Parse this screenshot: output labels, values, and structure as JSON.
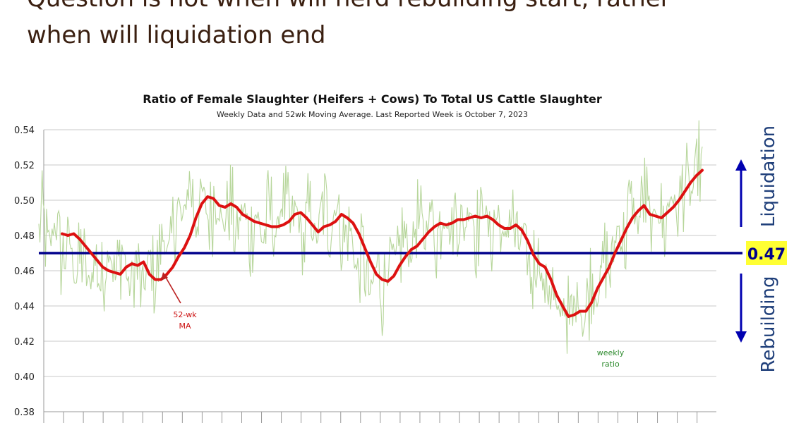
{
  "headline": {
    "line1": "Question is not when will herd rebuilding start, rather",
    "line2": "when will liquidation end"
  },
  "chart_data": {
    "type": "line",
    "title": "Ratio of Female Slaughter (Heifers + Cows) To Total US Cattle Slaughter",
    "subtitle": "Weekly Data and 52wk Moving Average.  Last Reported Week is October 7, 2023",
    "ylim": [
      0.38,
      0.54
    ],
    "yticks": [
      "0.54",
      "0.52",
      "0.50",
      "0.48",
      "0.46",
      "0.44",
      "0.42",
      "0.40",
      "0.38"
    ],
    "grid": true,
    "threshold": {
      "value": 0.47,
      "label": "0.47",
      "color": "#00008b",
      "label_bg": "#ffff33"
    },
    "side_labels": {
      "up": "Liquidation",
      "down": "Rebuilding",
      "color": "#1f3f7a",
      "arrow_color": "#0000b0"
    },
    "annotations": {
      "ma_line1": "52-wk",
      "ma_line2": "MA",
      "weekly_line1": "weekly",
      "weekly_line2": "ratio"
    },
    "colors": {
      "ma": "#dd1111",
      "weekly": "#b7d69b",
      "grid": "#c8c8c8",
      "ma_label": "#cc1111",
      "weekly_label": "#2d8a2d"
    },
    "series": [
      {
        "type": "line",
        "values": [
          0.481,
          0.48,
          0.481,
          0.478,
          0.474,
          0.47,
          0.466,
          0.462,
          0.46,
          0.459,
          0.458,
          0.462,
          0.464,
          0.463,
          0.465,
          0.458,
          0.455,
          0.455,
          0.458,
          0.462,
          0.468,
          0.473,
          0.48,
          0.49,
          0.498,
          0.502,
          0.501,
          0.497,
          0.496,
          0.498,
          0.496,
          0.492,
          0.49,
          0.488,
          0.487,
          0.486,
          0.485,
          0.485,
          0.486,
          0.488,
          0.492,
          0.493,
          0.49,
          0.486,
          0.482,
          0.485,
          0.486,
          0.488,
          0.492,
          0.49,
          0.487,
          0.481,
          0.473,
          0.465,
          0.458,
          0.455,
          0.454,
          0.457,
          0.463,
          0.468,
          0.472,
          0.474,
          0.478,
          0.482,
          0.485,
          0.487,
          0.486,
          0.487,
          0.489,
          0.489,
          0.49,
          0.491,
          0.49,
          0.491,
          0.489,
          0.486,
          0.484,
          0.484,
          0.486,
          0.483,
          0.477,
          0.469,
          0.464,
          0.462,
          0.455,
          0.446,
          0.44,
          0.434,
          0.435,
          0.437,
          0.437,
          0.442,
          0.45,
          0.456,
          0.462,
          0.47,
          0.477,
          0.484,
          0.49,
          0.494,
          0.497,
          0.492,
          0.491,
          0.49,
          0.493,
          0.496,
          0.5,
          0.505,
          0.51,
          0.514,
          0.517
        ]
      }
    ]
  }
}
